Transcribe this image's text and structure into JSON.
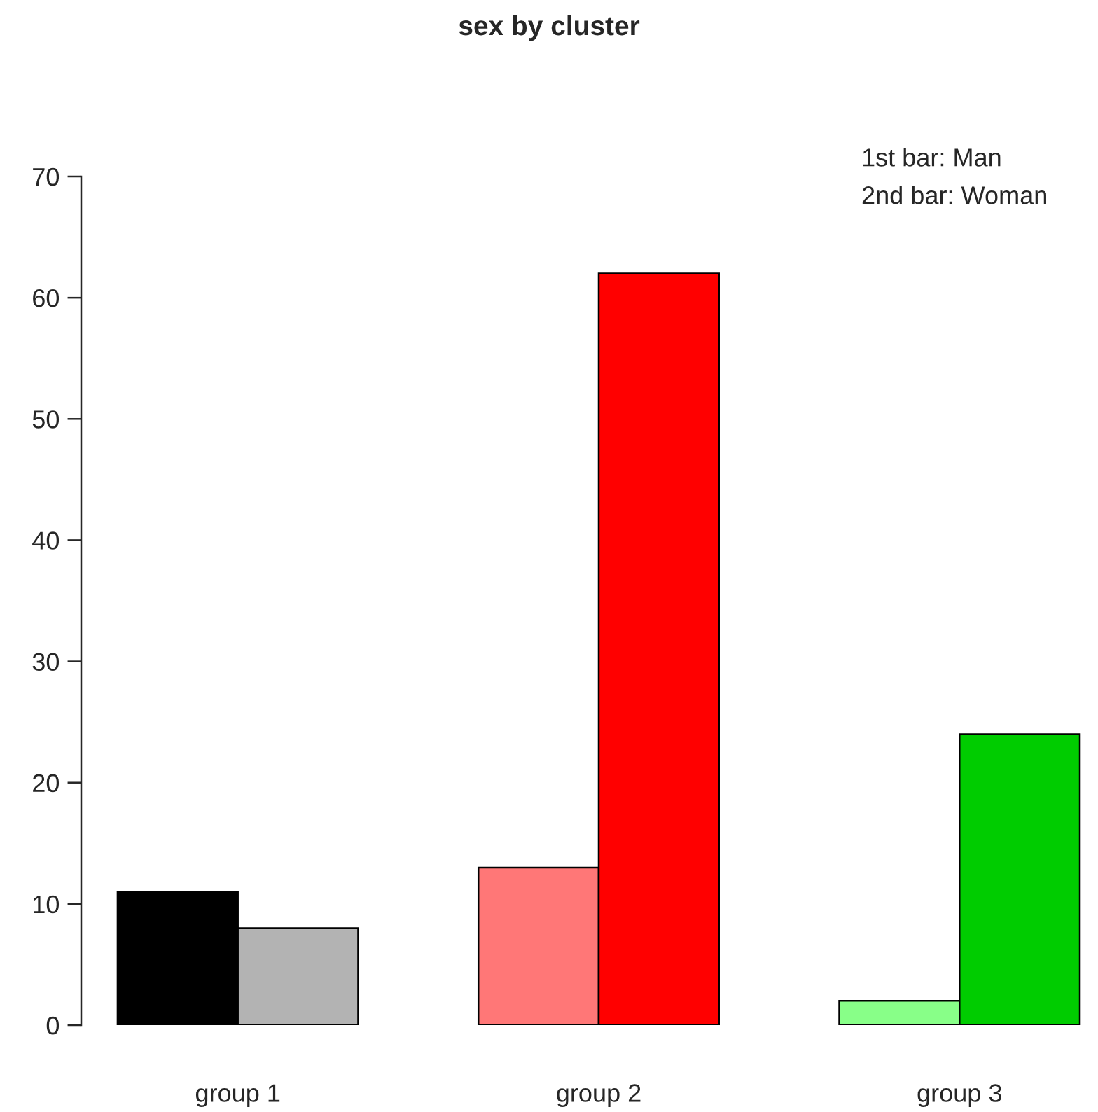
{
  "chart_data": {
    "type": "bar",
    "title": "sex by cluster",
    "categories": [
      "group 1",
      "group 2",
      "group 3"
    ],
    "series": [
      {
        "colors": [
          "#000000",
          "#ff7777",
          "#88ff88"
        ],
        "values": [
          11,
          13,
          2
        ]
      },
      {
        "colors": [
          "#b3b3b3",
          "#ff0000",
          "#00cc00"
        ],
        "values": [
          8,
          62,
          24
        ]
      }
    ],
    "ylim": [
      0,
      70
    ],
    "yticks": [
      0,
      10,
      20,
      30,
      40,
      50,
      60,
      70
    ],
    "grid": false,
    "legend": false,
    "annotations": [
      "1st bar: Man",
      "2nd bar: Woman"
    ]
  }
}
